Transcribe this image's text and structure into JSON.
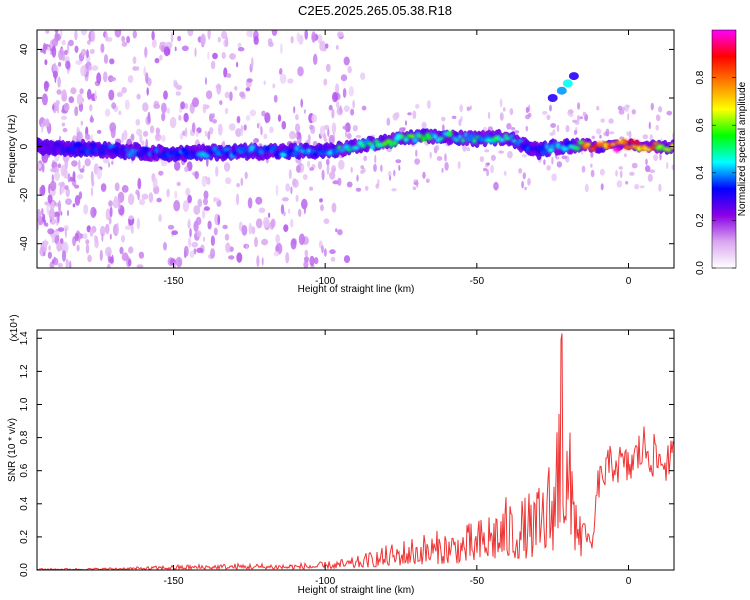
{
  "title": "C2E5.2025.265.05.38.R18",
  "chart_data": [
    {
      "type": "heatmap",
      "xlabel": "Height of straight line (km)",
      "ylabel": "Frequency (Hz)",
      "xlim": [
        -195,
        15
      ],
      "ylim": [
        -50,
        48
      ],
      "xticks": [
        -150,
        -100,
        -50,
        0
      ],
      "yticks": [
        -40,
        -20,
        0,
        20,
        40
      ],
      "colorbar": {
        "label": "Normalized spectral amplitude",
        "range": [
          0,
          1
        ],
        "ticks": [
          "0.0",
          "0.2",
          "0.4",
          "0.6",
          "0.8"
        ],
        "colormap": [
          "#ffffff",
          "#d9a6f0",
          "#8a00e6",
          "#0000ff",
          "#00ffff",
          "#00ff00",
          "#ffff00",
          "#ff8000",
          "#ff0000",
          "#ff00ff"
        ]
      },
      "ridge": {
        "x": [
          -195,
          -175,
          -150,
          -125,
          -100,
          -90,
          -80,
          -70,
          -60,
          -50,
          -40,
          -30,
          -25,
          -20,
          -15,
          -10,
          -5,
          0,
          5,
          14
        ],
        "y": [
          0,
          -1,
          -3,
          -2,
          -2,
          0,
          2,
          4,
          4,
          3,
          4,
          -2,
          0,
          0,
          1,
          0,
          0,
          1,
          0,
          0
        ],
        "amplitude": [
          0.3,
          0.35,
          0.4,
          0.4,
          0.45,
          0.5,
          0.55,
          0.55,
          0.5,
          0.5,
          0.5,
          0.3,
          0.45,
          0.4,
          0.75,
          0.85,
          0.9,
          0.9,
          0.85,
          0.6
        ]
      },
      "secondary_feature": {
        "x": [
          -25,
          -22,
          -20,
          -18
        ],
        "y": [
          20,
          23,
          26,
          29
        ],
        "amplitude": [
          0.3,
          0.4,
          0.45,
          0.3
        ]
      }
    },
    {
      "type": "line",
      "xlabel": "Height of straight line (km)",
      "ylabel": "SNR (10 * v/v)",
      "y_multiplier": "(x10⁴)",
      "xlim": [
        -195,
        15
      ],
      "ylim": [
        0,
        1.45
      ],
      "xticks": [
        -150,
        -100,
        -50,
        0
      ],
      "yticks": [
        "0.0",
        "0.2",
        "0.4",
        "0.6",
        "0.8",
        "1.0",
        "1.2",
        "1.4"
      ],
      "color": "#ee3333",
      "series": [
        {
          "x": [
            -195,
            -180,
            -160,
            -150,
            -130,
            -110,
            -100,
            -90,
            -80,
            -70,
            -60,
            -50,
            -45,
            -40,
            -35,
            -30,
            -25,
            -22,
            -20,
            -17,
            -15,
            -12,
            -10,
            -5,
            0,
            5,
            10,
            14
          ],
          "y": [
            0.01,
            0.01,
            0.02,
            0.03,
            0.04,
            0.04,
            0.05,
            0.08,
            0.15,
            0.22,
            0.25,
            0.3,
            0.4,
            0.45,
            0.45,
            0.5,
            0.75,
            1.45,
            0.9,
            0.7,
            0.3,
            0.15,
            0.6,
            0.75,
            0.7,
            0.85,
            0.75,
            0.75
          ]
        }
      ]
    }
  ]
}
